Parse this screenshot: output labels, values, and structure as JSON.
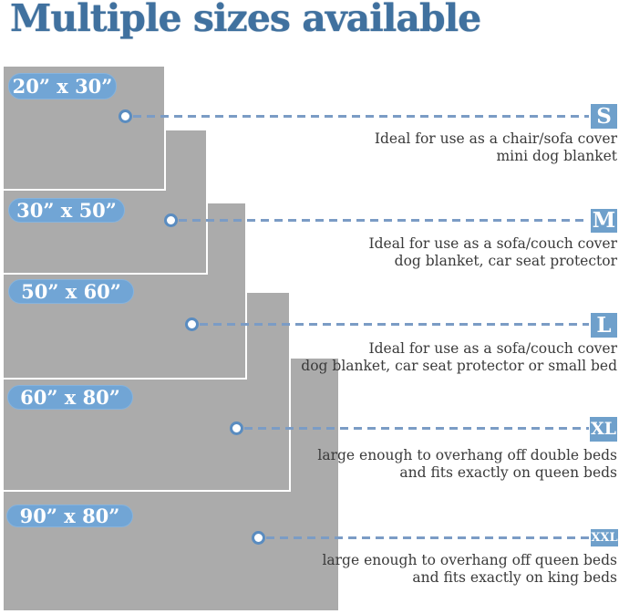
{
  "title": "Multiple sizes available",
  "colors": {
    "title_blue": "#40719f",
    "badge_blue": "#71a5d5",
    "code_badge_blue": "#6fa0cb",
    "dash_blue": "#7b9cc5",
    "dot_ring_blue": "#5a8cc0",
    "blanket_gray": "#ababab",
    "desc_text": "#3a3a3a"
  },
  "sizes": [
    {
      "label": "20” x 30”",
      "code": "S",
      "desc1": "Ideal for use as a chair/sofa cover",
      "desc2": "mini dog blanket"
    },
    {
      "label": "30” x 50”",
      "code": "M",
      "desc1": "Ideal for use as a sofa/couch cover",
      "desc2": "dog blanket, car seat protector"
    },
    {
      "label": "50” x 60”",
      "code": "L",
      "desc1": "Ideal for use as a sofa/couch cover",
      "desc2": "dog blanket, car seat protector or small bed"
    },
    {
      "label": "60” x 80”",
      "code": "XL",
      "desc1": "large enough to overhang off double beds",
      "desc2": "and fits exactly on queen beds"
    },
    {
      "label": "90” x 80”",
      "code": "XXL",
      "desc1": "large enough to overhang off queen beds",
      "desc2": "and fits exactly on king beds"
    }
  ]
}
